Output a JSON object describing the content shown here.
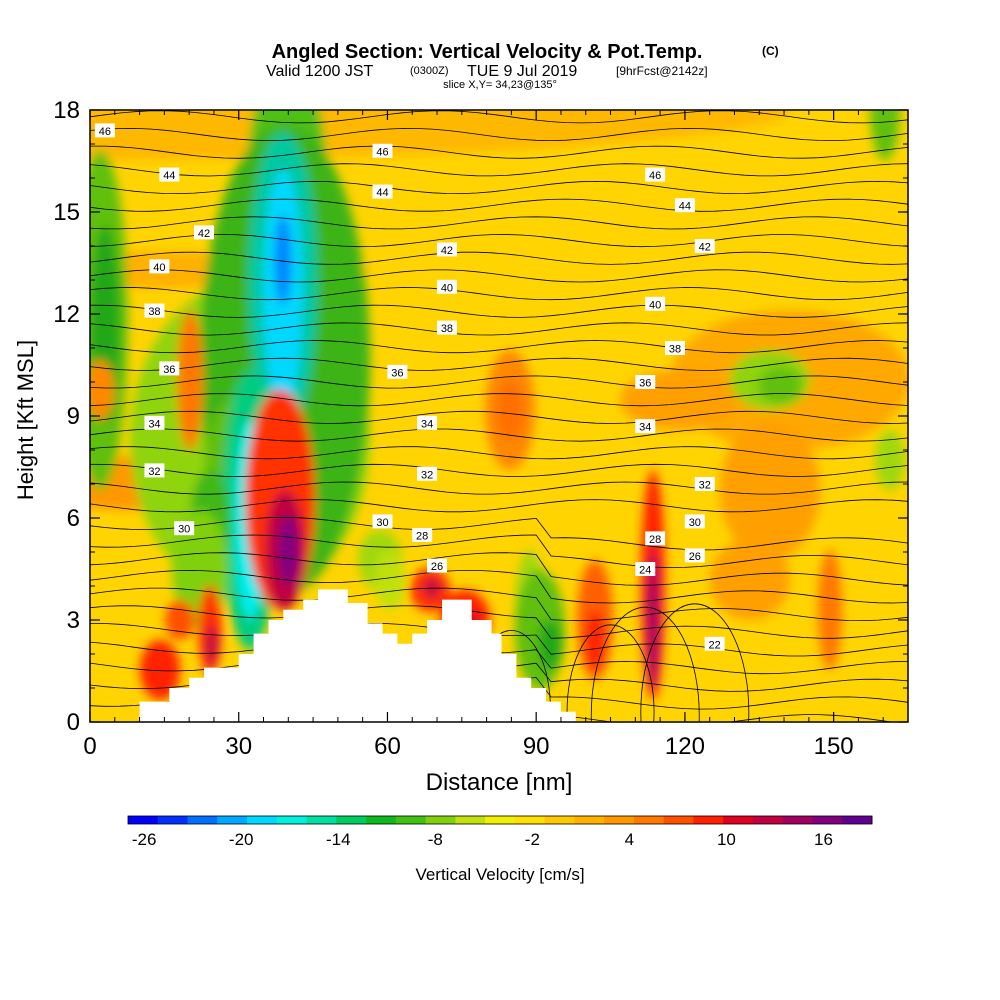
{
  "chart_data": {
    "type": "heatmap",
    "title": "Angled Section: Vertical Velocity & Pot.Temp.",
    "title_mark": "(C)",
    "subtitle_a": "Valid 1200 JST",
    "subtitle_b": "(0300Z)",
    "subtitle_c": "TUE 9 Jul 2019",
    "subtitle_d": "[9hrFcst@2142z]",
    "subtitle2": "slice X,Y= 34,23@135°",
    "xlabel": "Distance [nm]",
    "ylabel": "Height [Kft MSL]",
    "xlim": [
      0,
      165
    ],
    "ylim": [
      0,
      18
    ],
    "xticks": [
      0,
      30,
      60,
      90,
      120,
      150
    ],
    "yticks": [
      0,
      3,
      6,
      9,
      12,
      15,
      18
    ],
    "colorbar": {
      "label": "Vertical Velocity [cm/s]",
      "range": [
        -27,
        19
      ],
      "tick_labels": [
        -26,
        -20,
        -14,
        -8,
        -2,
        4,
        10,
        16
      ],
      "colors": [
        "#0000ff",
        "#0030ff",
        "#0070ff",
        "#00a8ff",
        "#00d8ff",
        "#00f0e0",
        "#00e0a0",
        "#00cc60",
        "#10b820",
        "#40c010",
        "#80d010",
        "#c0e010",
        "#f0f000",
        "#ffe000",
        "#ffc800",
        "#ffb000",
        "#ff9800",
        "#ff7800",
        "#ff5000",
        "#ff2000",
        "#e00020",
        "#c00040",
        "#a00060",
        "#800080",
        "#600090"
      ]
    },
    "contour_labels": [
      {
        "text": "46",
        "x": 3,
        "y": 17.4
      },
      {
        "text": "46",
        "x": 59,
        "y": 16.8
      },
      {
        "text": "46",
        "x": 114,
        "y": 16.1
      },
      {
        "text": "44",
        "x": 16,
        "y": 16.1
      },
      {
        "text": "44",
        "x": 59,
        "y": 15.6
      },
      {
        "text": "44",
        "x": 120,
        "y": 15.2
      },
      {
        "text": "42",
        "x": 23,
        "y": 14.4
      },
      {
        "text": "42",
        "x": 72,
        "y": 13.9
      },
      {
        "text": "42",
        "x": 124,
        "y": 14.0
      },
      {
        "text": "40",
        "x": 14,
        "y": 13.4
      },
      {
        "text": "40",
        "x": 72,
        "y": 12.8
      },
      {
        "text": "40",
        "x": 114,
        "y": 12.3
      },
      {
        "text": "38",
        "x": 13,
        "y": 12.1
      },
      {
        "text": "38",
        "x": 72,
        "y": 11.6
      },
      {
        "text": "38",
        "x": 118,
        "y": 11.0
      },
      {
        "text": "36",
        "x": 16,
        "y": 10.4
      },
      {
        "text": "36",
        "x": 62,
        "y": 10.3
      },
      {
        "text": "36",
        "x": 112,
        "y": 10.0
      },
      {
        "text": "34",
        "x": 13,
        "y": 8.8
      },
      {
        "text": "34",
        "x": 68,
        "y": 8.8
      },
      {
        "text": "34",
        "x": 112,
        "y": 8.7
      },
      {
        "text": "32",
        "x": 13,
        "y": 7.4
      },
      {
        "text": "32",
        "x": 68,
        "y": 7.3
      },
      {
        "text": "32",
        "x": 124,
        "y": 7.0
      },
      {
        "text": "30",
        "x": 19,
        "y": 5.7
      },
      {
        "text": "30",
        "x": 59,
        "y": 5.9
      },
      {
        "text": "30",
        "x": 122,
        "y": 5.9
      },
      {
        "text": "28",
        "x": 67,
        "y": 5.5
      },
      {
        "text": "28",
        "x": 114,
        "y": 5.4
      },
      {
        "text": "26",
        "x": 70,
        "y": 4.6
      },
      {
        "text": "26",
        "x": 122,
        "y": 4.9
      },
      {
        "text": "24",
        "x": 112,
        "y": 4.5
      },
      {
        "text": "22",
        "x": 126,
        "y": 2.3
      }
    ]
  }
}
